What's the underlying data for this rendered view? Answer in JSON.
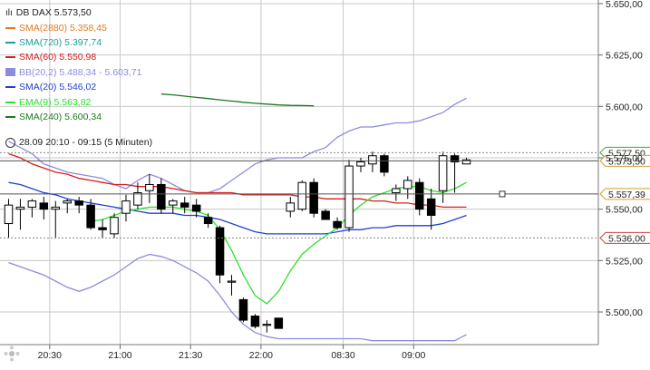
{
  "instrument": "DB DAX",
  "last": "5.573,50",
  "legend": [
    {
      "label": "SMA(2880) 5.358,45",
      "color": "#e07a20",
      "kind": "line"
    },
    {
      "label": "SMA(720) 5.397,74",
      "color": "#19a09a",
      "kind": "line"
    },
    {
      "label": "SMA(60) 5.550,98",
      "color": "#d42020",
      "kind": "line"
    },
    {
      "label": "BB(20,2) 5.488,34 - 5.603,71",
      "color": "#8c8cdc",
      "kind": "box"
    },
    {
      "label": "SMA(20) 5.546,02",
      "color": "#2040d0",
      "kind": "line"
    },
    {
      "label": "EMA(9) 5.563,82",
      "color": "#2ee02e",
      "kind": "line"
    },
    {
      "label": "SMA(240) 5.600,34",
      "color": "#1a7a1a",
      "kind": "line"
    }
  ],
  "info": "28.09 20:10 - 09:15 (5 Minuten)",
  "colors": {
    "up": "#ffffff",
    "down": "#000000",
    "grid": "#bbbbbb"
  },
  "chart_data": {
    "type": "candlestick",
    "ylim": [
      5488,
      5652
    ],
    "yticks": [
      {
        "value": 5650,
        "label": "5.650,00"
      },
      {
        "value": 5625,
        "label": "5.625,00"
      },
      {
        "value": 5600,
        "label": "5.600,00"
      },
      {
        "value": 5575,
        "label": "5.575,00"
      },
      {
        "value": 5550,
        "label": "5.550,00"
      },
      {
        "value": 5525,
        "label": "5.525,00"
      },
      {
        "value": 5500,
        "label": "5.500,00"
      }
    ],
    "xticks": [
      {
        "index": 3.5,
        "label": "20:30"
      },
      {
        "index": 9.5,
        "label": "21:00"
      },
      {
        "index": 15.5,
        "label": "21:30"
      },
      {
        "index": 21.5,
        "label": "22:00"
      },
      {
        "index": 28.5,
        "label": "08:30"
      },
      {
        "index": 34.5,
        "label": "09:00"
      }
    ],
    "candles": [
      {
        "o": 5543,
        "h": 5555,
        "l": 5536,
        "c": 5552
      },
      {
        "o": 5550,
        "h": 5555,
        "l": 5540,
        "c": 5551
      },
      {
        "o": 5551,
        "h": 5555,
        "l": 5546,
        "c": 5554
      },
      {
        "o": 5553,
        "h": 5556,
        "l": 5545,
        "c": 5550
      },
      {
        "o": 5550,
        "h": 5554,
        "l": 5536,
        "c": 5551
      },
      {
        "o": 5553,
        "h": 5555,
        "l": 5548,
        "c": 5554
      },
      {
        "o": 5554,
        "h": 5556,
        "l": 5548,
        "c": 5552
      },
      {
        "o": 5552,
        "h": 5555,
        "l": 5540,
        "c": 5541
      },
      {
        "o": 5541,
        "h": 5545,
        "l": 5536,
        "c": 5540
      },
      {
        "o": 5538,
        "h": 5548,
        "l": 5536,
        "c": 5546
      },
      {
        "o": 5548,
        "h": 5557,
        "l": 5544,
        "c": 5554
      },
      {
        "o": 5552,
        "h": 5563,
        "l": 5550,
        "c": 5558
      },
      {
        "o": 5559,
        "h": 5567,
        "l": 5553,
        "c": 5562
      },
      {
        "o": 5562,
        "h": 5565,
        "l": 5548,
        "c": 5550
      },
      {
        "o": 5552,
        "h": 5555,
        "l": 5548,
        "c": 5554
      },
      {
        "o": 5553,
        "h": 5556,
        "l": 5548,
        "c": 5551
      },
      {
        "o": 5552,
        "h": 5555,
        "l": 5546,
        "c": 5549
      },
      {
        "o": 5546,
        "h": 5548,
        "l": 5541,
        "c": 5543
      },
      {
        "o": 5541,
        "h": 5542,
        "l": 5514,
        "c": 5518
      },
      {
        "o": 5515,
        "h": 5518,
        "l": 5508,
        "c": 5515
      },
      {
        "o": 5506,
        "h": 5507,
        "l": 5495,
        "c": 5496
      },
      {
        "o": 5498,
        "h": 5499,
        "l": 5492,
        "c": 5493
      },
      {
        "o": 5494,
        "h": 5496,
        "l": 5490,
        "c": 5494
      },
      {
        "o": 5497,
        "h": 5497,
        "l": 5492,
        "c": 5492
      },
      {
        "o": 5549,
        "h": 5556,
        "l": 5546,
        "c": 5553
      },
      {
        "o": 5550,
        "h": 5564,
        "l": 5549,
        "c": 5563
      },
      {
        "o": 5563,
        "h": 5565,
        "l": 5546,
        "c": 5548
      },
      {
        "o": 5549,
        "h": 5550,
        "l": 5545,
        "c": 5545
      },
      {
        "o": 5544,
        "h": 5546,
        "l": 5540,
        "c": 5541
      },
      {
        "o": 5541,
        "h": 5574,
        "l": 5539,
        "c": 5571
      },
      {
        "o": 5571,
        "h": 5575,
        "l": 5568,
        "c": 5573
      },
      {
        "o": 5572,
        "h": 5578,
        "l": 5568,
        "c": 5576
      },
      {
        "o": 5576,
        "h": 5577,
        "l": 5566,
        "c": 5568
      },
      {
        "o": 5558,
        "h": 5562,
        "l": 5554,
        "c": 5560
      },
      {
        "o": 5560,
        "h": 5566,
        "l": 5555,
        "c": 5564
      },
      {
        "o": 5563,
        "h": 5565,
        "l": 5547,
        "c": 5550
      },
      {
        "o": 5555,
        "h": 5560,
        "l": 5540,
        "c": 5547
      },
      {
        "o": 5559,
        "h": 5578,
        "l": 5553,
        "c": 5576
      },
      {
        "o": 5576,
        "h": 5577,
        "l": 5558,
        "c": 5573
      },
      {
        "o": 5572,
        "h": 5575,
        "l": 5572,
        "c": 5574
      }
    ],
    "series": [
      {
        "name": "SMA(240)",
        "color": "#1a7a1a",
        "start": 13,
        "values": [
          5606,
          5605.6,
          5605,
          5604.4,
          5603.8,
          5603.2,
          5602.6,
          5602.0,
          5601.5,
          5601.1,
          5600.7,
          5600.5,
          5600.4,
          5600.3
        ]
      },
      {
        "name": "BB upper",
        "color": "#8c8cdc",
        "start": 0,
        "values": [
          5583,
          5580,
          5577,
          5572,
          5570,
          5568,
          5567,
          5566,
          5565,
          5562,
          5560,
          5564,
          5567,
          5565,
          5562,
          5559,
          5558,
          5558,
          5560,
          5564,
          5568,
          5572,
          5574,
          5575,
          5575,
          5575,
          5578,
          5580,
          5585,
          5588,
          5590,
          5590,
          5591,
          5592,
          5592,
          5593,
          5595,
          5597,
          5601,
          5604
        ]
      },
      {
        "name": "BB lower",
        "color": "#8c8cdc",
        "start": 0,
        "values": [
          5524,
          5522,
          5520,
          5518,
          5515,
          5512,
          5510,
          5512,
          5515,
          5518,
          5522,
          5526,
          5528,
          5527,
          5525,
          5522,
          5519,
          5515,
          5508,
          5500,
          5494,
          5490,
          5488,
          5487,
          5487,
          5487,
          5487,
          5487,
          5487,
          5487,
          5487,
          5486,
          5486,
          5486,
          5486,
          5486,
          5486,
          5486,
          5486,
          5489
        ]
      },
      {
        "name": "SMA(60)",
        "color": "#d42020",
        "start": 0,
        "values": [
          5577,
          5575,
          5572,
          5570,
          5568,
          5567,
          5565,
          5564,
          5563,
          5562,
          5562,
          5561,
          5561,
          5561,
          5560,
          5559,
          5558,
          5558,
          5558,
          5558,
          5557,
          5557,
          5557,
          5557,
          5557,
          5556,
          5556,
          5555,
          5555,
          5555,
          5555,
          5554,
          5554,
          5553,
          5553,
          5552,
          5552,
          5551,
          5551,
          5551
        ]
      },
      {
        "name": "SMA(20)",
        "color": "#2040d0",
        "start": 0,
        "values": [
          5563,
          5562,
          5560,
          5558,
          5557,
          5555,
          5554,
          5553,
          5552,
          5551,
          5550,
          5549,
          5548,
          5548,
          5548,
          5547,
          5547,
          5546,
          5545,
          5543,
          5541,
          5539,
          5538,
          5538,
          5538,
          5538,
          5538,
          5538,
          5539,
          5540,
          5540,
          5541,
          5541,
          5542,
          5542,
          5542,
          5542,
          5543,
          5545,
          5547
        ]
      },
      {
        "name": "EMA(9)",
        "color": "#2ee02e",
        "start": 7,
        "values": [
          5544,
          5545,
          5547,
          5549,
          5550,
          5551,
          5551,
          5551,
          5550,
          5549,
          5547,
          5540,
          5530,
          5518,
          5508,
          5504,
          5510,
          5520,
          5528,
          5533,
          5537,
          5541,
          5547,
          5552,
          5556,
          5558,
          5560,
          5561,
          5561,
          5559,
          5558,
          5560,
          5563
        ]
      }
    ],
    "price_tags": [
      {
        "value": 5577.5,
        "label": "5.577,50",
        "color": "#3aa23a",
        "dashed": true
      },
      {
        "value": 5573.5,
        "label": "5.573,50",
        "color": "#d0a030",
        "dashed": false,
        "solid": true
      },
      {
        "value": 5557.39,
        "label": "5.557,39",
        "color": "#d0a030",
        "dashed": false,
        "solid": true
      },
      {
        "value": 5536.0,
        "label": "5.536,00",
        "color": "#d04040",
        "dashed": true
      }
    ],
    "dotted_levels": [
      5577.5,
      5536.0
    ]
  }
}
